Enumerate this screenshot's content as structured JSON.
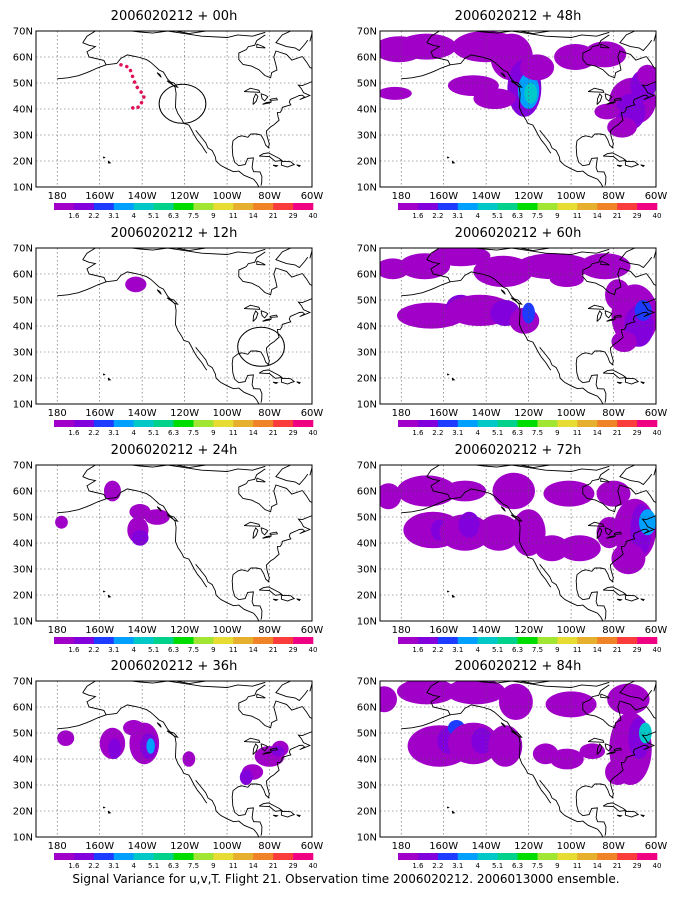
{
  "caption": "Signal Variance for u,v,T. Flight 21. Observation time 2006020212. 2006013000 ensemble.",
  "lat_labels": [
    "70N",
    "60N",
    "50N",
    "40N",
    "30N",
    "20N",
    "10N"
  ],
  "lon_labels": [
    "180",
    "160W",
    "140W",
    "120W",
    "100W",
    "80W",
    "60W"
  ],
  "colorbar": {
    "labels": [
      "1.6",
      "2.2",
      "3.1",
      "4",
      "5.1",
      "6.3",
      "7.5",
      "9",
      "11",
      "14",
      "21",
      "29",
      "40"
    ],
    "colors": [
      "#a000c8",
      "#8200dc",
      "#1e3cff",
      "#00a0ff",
      "#00c8c8",
      "#00d28c",
      "#00dc00",
      "#a0e632",
      "#e6dc32",
      "#e6af2d",
      "#f08228",
      "#fa3c3c",
      "#f00082"
    ]
  },
  "panels": [
    {
      "title": "2006020212 + 00h"
    },
    {
      "title": "2006020212 + 48h"
    },
    {
      "title": "2006020212 + 12h"
    },
    {
      "title": "2006020212 + 60h"
    },
    {
      "title": "2006020212 + 24h"
    },
    {
      "title": "2006020212 + 72h"
    },
    {
      "title": "2006020212 + 36h"
    },
    {
      "title": "2006020212 + 84h"
    }
  ]
}
